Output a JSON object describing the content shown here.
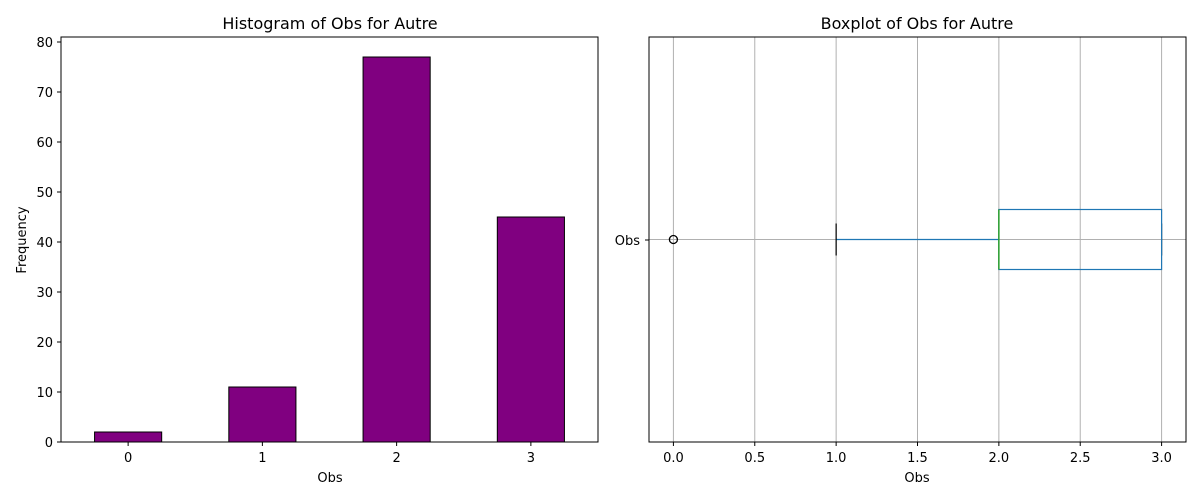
{
  "chart_data": [
    {
      "type": "bar",
      "title": "Histogram of Obs for Autre",
      "xlabel": "Obs",
      "ylabel": "Frequency",
      "categories": [
        "0",
        "1",
        "2",
        "3"
      ],
      "values": [
        2,
        11,
        77,
        45
      ],
      "ylim": [
        0,
        81.0
      ],
      "yticks": [
        "0",
        "10",
        "20",
        "30",
        "40",
        "50",
        "60",
        "70",
        "80"
      ],
      "bar_color": "#800080",
      "edge_color": "#000000",
      "grid": false
    },
    {
      "type": "boxplot",
      "title": "Boxplot of Obs for Autre",
      "xlabel": "Obs",
      "category": "Obs",
      "orientation": "horizontal",
      "stats": {
        "whisker_low": 1.0,
        "q1": 2.0,
        "median": 2.0,
        "q3": 3.0,
        "whisker_high": 3.0,
        "outliers": [
          0.0
        ]
      },
      "xlim": [
        -0.15,
        3.15
      ],
      "xticks": [
        "0.0",
        "0.5",
        "1.0",
        "1.5",
        "2.0",
        "2.5",
        "3.0"
      ],
      "box_color": "#1f77b4",
      "median_color": "#2ca02c",
      "grid": true
    }
  ]
}
